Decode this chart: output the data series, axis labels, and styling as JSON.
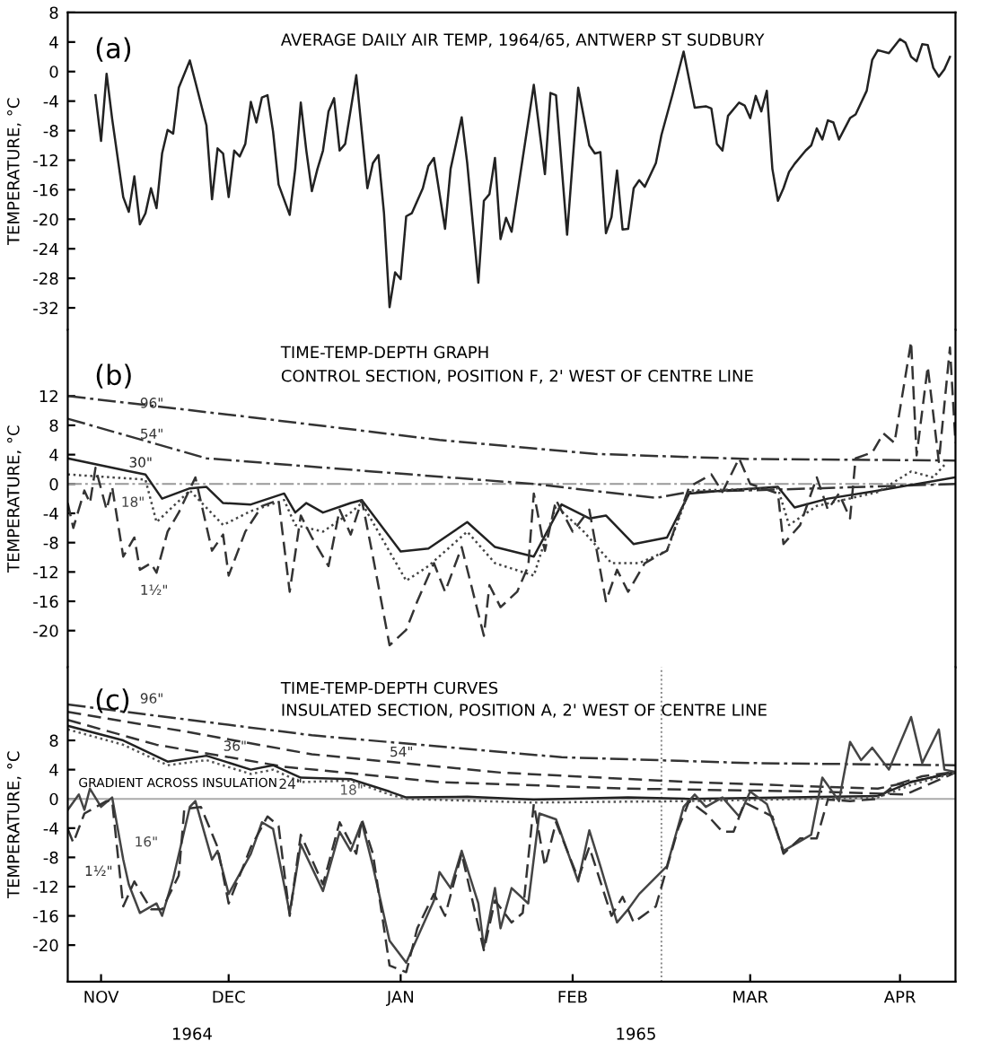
{
  "chart_data": [
    {
      "type": "line",
      "title": "AVERAGE DAILY AIR TEMP, 1964/65, ANTWERP ST SUDBURY",
      "ylabel": "TEMPERATURE, °C",
      "annotations": [
        "(a)"
      ],
      "xlim": [
        "1964-11-02",
        "1965-04-11"
      ],
      "ylim": [
        -35,
        8
      ],
      "yticks": [
        8,
        4,
        0,
        -4,
        -8,
        -12,
        -16,
        -20,
        -24,
        -28,
        -32
      ],
      "tick_labels": "y",
      "grid": false,
      "legend": false,
      "marker": "none",
      "series": [
        {
          "color": "#222222",
          "line_style": "solid",
          "x": [
            "1964-11-07",
            "1964-11-08",
            "1964-11-09",
            "1964-11-10",
            "1964-11-12",
            "1964-11-13",
            "1964-11-14",
            "1964-11-15",
            "1964-11-16",
            "1964-11-17",
            "1964-11-18",
            "1964-11-19",
            "1964-11-20",
            "1964-11-21",
            "1964-11-22",
            "1964-11-24",
            "1964-11-25",
            "1964-11-27",
            "1964-11-28",
            "1964-11-29",
            "1964-11-30",
            "1964-12-01",
            "1964-12-02",
            "1964-12-03",
            "1964-12-04",
            "1964-12-05",
            "1964-12-06",
            "1964-12-07",
            "1964-12-08",
            "1964-12-09",
            "1964-12-10",
            "1964-12-12",
            "1964-12-13",
            "1964-12-14",
            "1964-12-15",
            "1964-12-16",
            "1964-12-17",
            "1964-12-18",
            "1964-12-19",
            "1964-12-20",
            "1964-12-21",
            "1964-12-22",
            "1964-12-24",
            "1964-12-25",
            "1964-12-26",
            "1964-12-27",
            "1964-12-28",
            "1964-12-29",
            "1964-12-30",
            "1964-12-31",
            "1965-01-01",
            "1965-01-02",
            "1965-01-03",
            "1965-01-05",
            "1965-01-06",
            "1965-01-07",
            "1965-01-09",
            "1965-01-10",
            "1965-01-12",
            "1965-01-13",
            "1965-01-15",
            "1965-01-16",
            "1965-01-17",
            "1965-01-18",
            "1965-01-19",
            "1965-01-20",
            "1965-01-21",
            "1965-01-25",
            "1965-01-27",
            "1965-01-28",
            "1965-01-29",
            "1965-01-31",
            "1965-02-02",
            "1965-02-04",
            "1965-02-05",
            "1965-02-06",
            "1965-02-07",
            "1965-02-08",
            "1965-02-09",
            "1965-02-10",
            "1965-02-11",
            "1965-02-12",
            "1965-02-13",
            "1965-02-14",
            "1965-02-16",
            "1965-02-17",
            "1965-02-19",
            "1965-02-21",
            "1965-02-23",
            "1965-02-25",
            "1965-02-26",
            "1965-02-27",
            "1965-02-28",
            "1965-03-01",
            "1965-03-03",
            "1965-03-04",
            "1965-03-05",
            "1965-03-06",
            "1965-03-07",
            "1965-03-08",
            "1965-03-09",
            "1965-03-10",
            "1965-03-11",
            "1965-03-12",
            "1965-03-13",
            "1965-03-15",
            "1965-03-16",
            "1965-03-17",
            "1965-03-18",
            "1965-03-19",
            "1965-03-20",
            "1965-03-21",
            "1965-03-23",
            "1965-03-24",
            "1965-03-26",
            "1965-03-27",
            "1965-03-28",
            "1965-03-30",
            "1965-04-01",
            "1965-04-02",
            "1965-04-03",
            "1965-04-04",
            "1965-04-05",
            "1965-04-06",
            "1965-04-07",
            "1965-04-08",
            "1965-04-09",
            "1965-04-10"
          ],
          "values": [
            -3.2,
            -9.4,
            -0.3,
            -6.4,
            -17,
            -19,
            -14.2,
            -20.7,
            -19.2,
            -15.8,
            -18.5,
            -11.1,
            -7.9,
            -8.4,
            -2.2,
            1.5,
            -1.4,
            -7.3,
            -17.3,
            -10.4,
            -11.1,
            -17,
            -10.7,
            -11.5,
            -9.8,
            -4.1,
            -6.9,
            -3.5,
            -3.2,
            -8.1,
            -15.3,
            -19.4,
            -13.2,
            -4.2,
            -10.7,
            -16.2,
            -13.2,
            -10.7,
            -5.4,
            -3.6,
            -10.7,
            -9.8,
            -0.5,
            -8.1,
            -15.8,
            -12.4,
            -11.3,
            -19.2,
            -31.9,
            -27.2,
            -28.1,
            -19.6,
            -19.2,
            -15.8,
            -12.8,
            -11.7,
            -21.3,
            -13.2,
            -6.2,
            -12.4,
            -28.6,
            -17.5,
            -16.6,
            -11.7,
            -22.7,
            -19.8,
            -21.7,
            -1.8,
            -13.9,
            -2.9,
            -3.2,
            -22.1,
            -2.2,
            -10,
            -11.1,
            -10.9,
            -21.9,
            -19.7,
            -13.4,
            -21.4,
            -21.3,
            -15.8,
            -14.7,
            -15.6,
            -12.4,
            -8.6,
            -3.1,
            2.7,
            -4.9,
            -4.7,
            -5,
            -9.8,
            -10.7,
            -6,
            -4.2,
            -4.6,
            -6.3,
            -3.3,
            -5.4,
            -2.6,
            -13.2,
            -17.5,
            -15.8,
            -13.6,
            -12.5,
            -10.7,
            -10,
            -7.7,
            -9.2,
            -6.6,
            -6.9,
            -9.2,
            -6.3,
            -5.8,
            -2.6,
            1.6,
            2.9,
            2.5,
            4.4,
            3.9,
            2,
            1.4,
            3.7,
            3.6,
            0.5,
            -0.7,
            0.3,
            2
          ]
        }
      ]
    },
    {
      "type": "line",
      "title": "TIME-TEMP-DEPTH GRAPH",
      "subtitle": "CONTROL SECTION, POSITION F, 2' WEST OF CENTRE LINE",
      "ylabel": "TEMPERATURE, °C",
      "annotations": [
        "(b)"
      ],
      "xlim": [
        "1964-11-02",
        "1965-04-11"
      ],
      "ylim": [
        -25,
        21
      ],
      "yticks": [
        12,
        8,
        4,
        0,
        -4,
        -8,
        -12,
        -16,
        -20
      ],
      "tick_labels": "y",
      "grid": false,
      "legend": false,
      "marker": "none",
      "ref_lines": [
        {
          "axis": "y",
          "value": 0,
          "color": "#999999",
          "line_style": "dashdot"
        }
      ],
      "series": [
        {
          "name": "96\"",
          "color": "#333333",
          "line_style": "dashdot",
          "x": [
            "1964-11-02",
            "1964-12-05",
            "1965-01-08",
            "1965-02-05",
            "1965-03-05",
            "1965-04-11"
          ],
          "values": [
            12,
            9.1,
            6,
            4.1,
            3.4,
            3.2
          ]
        },
        {
          "name": "54\"",
          "color": "#333333",
          "line_style": "dashdot",
          "x": [
            "1964-11-02",
            "1964-11-27",
            "1964-12-27",
            "1965-01-25",
            "1965-02-16",
            "1965-02-22",
            "1965-03-17",
            "1965-04-11"
          ],
          "values": [
            8.9,
            3.5,
            1.7,
            0,
            -1.9,
            -1.1,
            -0.6,
            0
          ]
        },
        {
          "name": "30\"",
          "color": "#222222",
          "line_style": "solid",
          "x": [
            "1964-11-02",
            "1964-11-12",
            "1964-11-16",
            "1964-11-19",
            "1964-11-24",
            "1964-11-27",
            "1964-11-30",
            "1964-12-05",
            "1964-12-11",
            "1964-12-13",
            "1964-12-15",
            "1964-12-18",
            "1964-12-23",
            "1964-12-25",
            "1965-01-01",
            "1965-01-06",
            "1965-01-13",
            "1965-01-18",
            "1965-01-25",
            "1965-01-30",
            "1965-02-04",
            "1965-02-07",
            "1965-02-12",
            "1965-02-18",
            "1965-02-22",
            "1965-02-28",
            "1965-03-10",
            "1965-03-13",
            "1965-03-19",
            "1965-03-28",
            "1965-04-11"
          ],
          "values": [
            3.5,
            1.9,
            1.3,
            -2,
            -0.6,
            -0.4,
            -2.6,
            -2.8,
            -1.3,
            -3.9,
            -2.6,
            -3.9,
            -2.6,
            -2.2,
            -9.2,
            -8.8,
            -5.2,
            -8.6,
            -9.9,
            -2.8,
            -4.7,
            -4.3,
            -8.2,
            -7.3,
            -1.3,
            -0.9,
            -0.4,
            -3.2,
            -2,
            -0.9,
            0.9
          ]
        },
        {
          "name": "18\"",
          "color": "#444444",
          "line_style": "dotted",
          "x": [
            "1964-11-02",
            "1964-11-16",
            "1964-11-18",
            "1964-11-24",
            "1964-11-30",
            "1964-12-05",
            "1964-12-11",
            "1964-12-13",
            "1964-12-18",
            "1964-12-23",
            "1964-12-25",
            "1965-01-02",
            "1965-01-06",
            "1965-01-13",
            "1965-01-18",
            "1965-01-25",
            "1965-01-29",
            "1965-02-03",
            "1965-02-08",
            "1965-02-13",
            "1965-02-18",
            "1965-02-22",
            "1965-03-10",
            "1965-03-12",
            "1965-03-17",
            "1965-03-28",
            "1965-04-03",
            "1965-04-07",
            "1965-04-09"
          ],
          "values": [
            1.3,
            0.6,
            -5.2,
            -0.9,
            -5.6,
            -3.7,
            -2.2,
            -5.6,
            -6.5,
            -3.9,
            -2.6,
            -13.2,
            -11.2,
            -6.5,
            -10.8,
            -12.5,
            -3,
            -6.5,
            -10.8,
            -10.8,
            -9.1,
            -0.9,
            -0.6,
            -5.6,
            -3,
            -1.1,
            1.7,
            0.9,
            2.6
          ]
        },
        {
          "name": "1½\"",
          "color": "#333333",
          "line_style": "dashed",
          "x": [
            "1964-11-02",
            "1964-11-03",
            "1964-11-05",
            "1964-11-06",
            "1964-11-07",
            "1964-11-09",
            "1964-11-10",
            "1964-11-12",
            "1964-11-14",
            "1964-11-15",
            "1964-11-17",
            "1964-11-18",
            "1964-11-20",
            "1964-11-22",
            "1964-11-25",
            "1964-11-28",
            "1964-11-30",
            "1964-12-01",
            "1964-12-04",
            "1964-12-07",
            "1964-12-10",
            "1964-12-12",
            "1964-12-14",
            "1964-12-16",
            "1964-12-19",
            "1964-12-21",
            "1964-12-23",
            "1964-12-25",
            "1964-12-27",
            "1964-12-30",
            "1965-01-02",
            "1965-01-04",
            "1965-01-07",
            "1965-01-09",
            "1965-01-12",
            "1965-01-16",
            "1965-01-17",
            "1965-01-19",
            "1965-01-22",
            "1965-01-24",
            "1965-01-25",
            "1965-01-27",
            "1965-01-29",
            "1965-02-01",
            "1965-02-04",
            "1965-02-07",
            "1965-02-09",
            "1965-02-11",
            "1965-02-14",
            "1965-02-18",
            "1965-02-22",
            "1965-02-26",
            "1965-02-28",
            "1965-03-03",
            "1965-03-05",
            "1965-03-10",
            "1965-03-11",
            "1965-03-14",
            "1965-03-17",
            "1965-03-19",
            "1965-03-21",
            "1965-03-23",
            "1965-03-24",
            "1965-03-27",
            "1965-03-29",
            "1965-03-31",
            "1965-04-03",
            "1965-04-04",
            "1965-04-06",
            "1965-04-08",
            "1965-04-10",
            "1965-04-11"
          ],
          "values": [
            -2.6,
            -6,
            -0.9,
            -2.6,
            2.2,
            -3.5,
            -0.4,
            -9.9,
            -7.3,
            -11.7,
            -10.8,
            -12.1,
            -6.5,
            -3.9,
            0.9,
            -9.1,
            -6.9,
            -12.5,
            -6.5,
            -3,
            -2.2,
            -14.7,
            -4.3,
            -7.3,
            -11.2,
            -3.5,
            -6.9,
            -2.2,
            -9.9,
            -22,
            -19.9,
            -16,
            -10.8,
            -14.7,
            -8.6,
            -20.7,
            -13.8,
            -16.8,
            -14.7,
            -11.2,
            -1.3,
            -9.1,
            -2.2,
            -6.5,
            -3.5,
            -16,
            -11.7,
            -14.7,
            -10.8,
            -9.1,
            -0.4,
            1.3,
            -1.1,
            3.5,
            0,
            -1.3,
            -8.2,
            -5.6,
            0.9,
            -3.5,
            -1.3,
            -4.7,
            3.5,
            4.3,
            6.9,
            5.6,
            19.4,
            3.9,
            16,
            3,
            18.6,
            5.6
          ]
        }
      ]
    },
    {
      "type": "line",
      "title": "TIME-TEMP-DEPTH CURVES",
      "subtitle": "INSULATED SECTION, POSITION A, 2' WEST OF CENTRE LINE",
      "ylabel": "TEMPERATURE, °C",
      "annotations": [
        "(c)",
        "GRADIENT ACROSS INSULATION",
        "1964",
        "1965"
      ],
      "xlim": [
        "1964-11-02",
        "1965-04-11"
      ],
      "xticks": [
        {
          "value": "1964-11-08",
          "label": "NOV"
        },
        {
          "value": "1964-12-01",
          "label": "DEC"
        },
        {
          "value": "1965-01-01",
          "label": "JAN"
        },
        {
          "value": "1965-02-01",
          "label": "FEB"
        },
        {
          "value": "1965-03-05",
          "label": "MAR"
        },
        {
          "value": "1965-04-01",
          "label": "APR"
        }
      ],
      "ylim": [
        -25,
        18
      ],
      "yticks": [
        8,
        4,
        0,
        -4,
        -8,
        -12,
        -16,
        -20
      ],
      "grid": false,
      "legend": false,
      "marker": "none",
      "ref_lines": [
        {
          "axis": "y",
          "value": 0,
          "color": "#aaaaaa",
          "line_style": "solid"
        },
        {
          "axis": "x",
          "value": "1965-02-17",
          "color": "#888888",
          "line_style": "dotted"
        }
      ],
      "series": [
        {
          "name": "96\"",
          "color": "#333333",
          "line_style": "dashdot",
          "x": [
            "1964-11-02",
            "1964-12-16",
            "1965-01-30",
            "1965-03-05",
            "1965-04-11"
          ],
          "values": [
            12.9,
            8.7,
            5.7,
            4.9,
            4.6
          ]
        },
        {
          "name": "54\"",
          "color": "#333333",
          "line_style": "dashed",
          "x": [
            "1964-11-02",
            "1964-11-24",
            "1964-12-16",
            "1965-01-19",
            "1965-02-22",
            "1965-03-28",
            "1965-04-11"
          ],
          "values": [
            11.9,
            9.1,
            6.1,
            3.6,
            2.3,
            1.4,
            3.6
          ]
        },
        {
          "name": "36\"",
          "color": "#333333",
          "line_style": "dashed",
          "x": [
            "1964-11-02",
            "1964-11-18",
            "1964-12-11",
            "1965-01-08",
            "1965-02-11",
            "1965-03-17",
            "1965-04-02",
            "1965-04-11"
          ],
          "values": [
            10.8,
            7.4,
            4.4,
            2.3,
            1.4,
            1,
            0.6,
            3.6
          ]
        },
        {
          "name": "24\"",
          "color": "#222222",
          "line_style": "solid",
          "x": [
            "1964-11-02",
            "1964-11-12",
            "1964-11-20",
            "1964-11-27",
            "1964-12-05",
            "1964-12-09",
            "1964-12-14",
            "1964-12-23",
            "1964-12-30",
            "1965-01-02",
            "1965-01-13",
            "1965-01-25",
            "1965-02-11",
            "1965-02-22",
            "1965-03-28",
            "1965-04-03",
            "1965-04-11"
          ],
          "values": [
            10,
            8,
            5.1,
            5.9,
            4,
            4.6,
            2.9,
            2.7,
            1,
            0.2,
            0.3,
            -0.1,
            0.2,
            0,
            0.4,
            2.3,
            3.7
          ]
        },
        {
          "name": "18\"",
          "color": "#555555",
          "line_style": "dotted",
          "x": [
            "1964-11-02",
            "1964-11-12",
            "1964-11-20",
            "1964-11-27",
            "1964-12-05",
            "1964-12-09",
            "1964-12-14",
            "1964-12-23",
            "1964-12-30",
            "1965-01-02",
            "1965-01-25",
            "1965-02-22",
            "1965-03-28",
            "1965-04-03",
            "1965-04-11"
          ],
          "values": [
            9.5,
            7.4,
            4.6,
            5.3,
            3.4,
            4,
            2.3,
            2.5,
            0.6,
            0,
            -0.5,
            -0.3,
            0.2,
            1.9,
            3.6
          ]
        },
        {
          "name": "16\"",
          "color": "#444444",
          "line_style": "solid",
          "x": [
            "1964-11-02",
            "1964-11-04",
            "1964-11-05",
            "1964-11-06",
            "1964-11-08",
            "1964-11-10",
            "1964-11-12",
            "1964-11-13",
            "1964-11-15",
            "1964-11-18",
            "1964-11-19",
            "1964-11-21",
            "1964-11-24",
            "1964-11-25",
            "1964-11-28",
            "1964-11-29",
            "1964-12-01",
            "1964-12-05",
            "1964-12-07",
            "1964-12-09",
            "1964-12-12",
            "1964-12-14",
            "1964-12-18",
            "1964-12-21",
            "1964-12-23",
            "1964-12-25",
            "1964-12-27",
            "1964-12-30",
            "1965-01-02",
            "1965-01-04",
            "1965-01-07",
            "1965-01-08",
            "1965-01-10",
            "1965-01-12",
            "1965-01-15",
            "1965-01-16",
            "1965-01-18",
            "1965-01-19",
            "1965-01-21",
            "1965-01-24",
            "1965-01-26",
            "1965-01-29",
            "1965-02-02",
            "1965-02-04",
            "1965-02-06",
            "1965-02-09",
            "1965-02-11",
            "1965-02-13",
            "1965-02-18",
            "1965-02-21",
            "1965-02-23",
            "1965-02-25",
            "1965-02-28",
            "1965-03-03",
            "1965-03-05",
            "1965-03-08",
            "1965-03-11",
            "1965-03-16",
            "1965-03-18",
            "1965-03-21",
            "1965-03-23",
            "1965-03-25",
            "1965-03-27",
            "1965-03-30",
            "1965-04-03",
            "1965-04-05",
            "1965-04-08",
            "1965-04-09",
            "1965-04-11"
          ],
          "values": [
            -1.5,
            0.6,
            -1.5,
            1.4,
            -1.1,
            0.2,
            -8.3,
            -11.7,
            -15.6,
            -14.3,
            -16,
            -10.9,
            -1.1,
            -0.3,
            -8.3,
            -7.1,
            -13,
            -7.5,
            -3.2,
            -4.1,
            -15.6,
            -6.2,
            -12.6,
            -4.5,
            -7.1,
            -3.2,
            -9.2,
            -19.4,
            -22.4,
            -19,
            -13.9,
            -10,
            -12.2,
            -7.1,
            -14.3,
            -20.3,
            -12.2,
            -17.7,
            -12.2,
            -14.3,
            -2,
            -2.8,
            -11.3,
            -4.3,
            -9.2,
            -16.9,
            -15.1,
            -13,
            -9.2,
            -1.1,
            0.6,
            -1.1,
            0.2,
            -2.4,
            1,
            -0.7,
            -7.1,
            -4.9,
            2.9,
            -0.3,
            7.8,
            5.3,
            7,
            4,
            11.2,
            4.9,
            9.5,
            4,
            3.7
          ]
        },
        {
          "name": "1½\"",
          "color": "#333333",
          "line_style": "dashed",
          "x": [
            "1964-11-02",
            "1964-11-03",
            "1964-11-05",
            "1964-11-09",
            "1964-11-10",
            "1964-11-12",
            "1964-11-14",
            "1964-11-17",
            "1964-11-19",
            "1964-11-22",
            "1964-11-23",
            "1964-11-26",
            "1964-11-29",
            "1964-12-01",
            "1964-12-05",
            "1964-12-08",
            "1964-12-10",
            "1964-12-12",
            "1964-12-14",
            "1964-12-18",
            "1964-12-21",
            "1964-12-24",
            "1964-12-25",
            "1964-12-27",
            "1964-12-30",
            "1965-01-02",
            "1965-01-04",
            "1965-01-07",
            "1965-01-09",
            "1965-01-12",
            "1965-01-16",
            "1965-01-18",
            "1965-01-21",
            "1965-01-23",
            "1965-01-25",
            "1965-01-27",
            "1965-01-29",
            "1965-02-02",
            "1965-02-04",
            "1965-02-08",
            "1965-02-10",
            "1965-02-12",
            "1965-02-16",
            "1965-02-20",
            "1965-02-22",
            "1965-02-25",
            "1965-02-28",
            "1965-03-02",
            "1965-03-04",
            "1965-03-09",
            "1965-03-11",
            "1965-03-14",
            "1965-03-17",
            "1965-03-19",
            "1965-03-23",
            "1965-03-28",
            "1965-03-31",
            "1965-04-05",
            "1965-04-11"
          ],
          "values": [
            -4.1,
            -6,
            -2,
            -0.3,
            -0.3,
            -14.7,
            -11.3,
            -15.1,
            -15.1,
            -10.5,
            -1.4,
            -1.1,
            -6.6,
            -14.3,
            -6.6,
            -2.4,
            -3.7,
            -16,
            -4.9,
            -11.7,
            -3.2,
            -7.5,
            -2.8,
            -7.5,
            -22.8,
            -23.7,
            -17.7,
            -13,
            -16,
            -7.5,
            -20.7,
            -13.9,
            -16.9,
            -15.6,
            -0.7,
            -9.2,
            -3.2,
            -10.9,
            -6.6,
            -16,
            -13.4,
            -16.9,
            -14.7,
            -4.1,
            -0.3,
            -2,
            -4.5,
            -4.5,
            -0.5,
            -2.4,
            -7.5,
            -5.4,
            -5.4,
            -0.1,
            -0.3,
            0,
            1.9,
            3.1,
            3.7
          ]
        }
      ]
    }
  ]
}
